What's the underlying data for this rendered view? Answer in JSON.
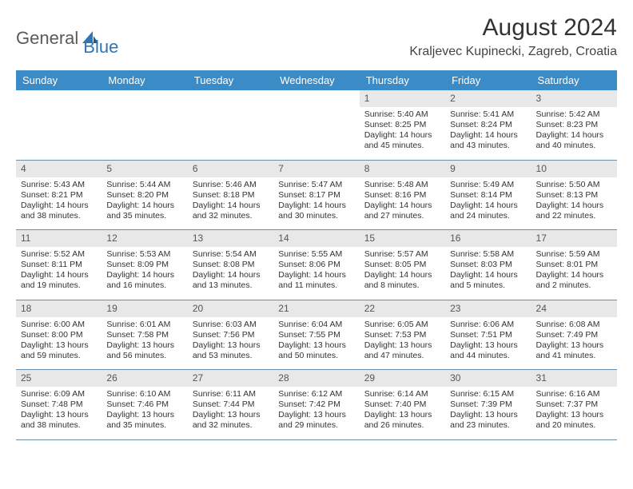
{
  "logo": {
    "text1": "General",
    "text2": "Blue"
  },
  "title": "August 2024",
  "location": "Kraljevec Kupinecki, Zagreb, Croatia",
  "colors": {
    "header_bg": "#3b8bc6",
    "header_text": "#ffffff",
    "daynum_bg": "#e8e8e8",
    "cell_border": "#6b8fa8",
    "logo_gray": "#5a5a5a",
    "logo_blue": "#2e75b6"
  },
  "weekdays": [
    "Sunday",
    "Monday",
    "Tuesday",
    "Wednesday",
    "Thursday",
    "Friday",
    "Saturday"
  ],
  "weeks": [
    [
      null,
      null,
      null,
      null,
      {
        "d": "1",
        "sunrise": "5:40 AM",
        "sunset": "8:25 PM",
        "dl": "14 hours and 45 minutes."
      },
      {
        "d": "2",
        "sunrise": "5:41 AM",
        "sunset": "8:24 PM",
        "dl": "14 hours and 43 minutes."
      },
      {
        "d": "3",
        "sunrise": "5:42 AM",
        "sunset": "8:23 PM",
        "dl": "14 hours and 40 minutes."
      }
    ],
    [
      {
        "d": "4",
        "sunrise": "5:43 AM",
        "sunset": "8:21 PM",
        "dl": "14 hours and 38 minutes."
      },
      {
        "d": "5",
        "sunrise": "5:44 AM",
        "sunset": "8:20 PM",
        "dl": "14 hours and 35 minutes."
      },
      {
        "d": "6",
        "sunrise": "5:46 AM",
        "sunset": "8:18 PM",
        "dl": "14 hours and 32 minutes."
      },
      {
        "d": "7",
        "sunrise": "5:47 AM",
        "sunset": "8:17 PM",
        "dl": "14 hours and 30 minutes."
      },
      {
        "d": "8",
        "sunrise": "5:48 AM",
        "sunset": "8:16 PM",
        "dl": "14 hours and 27 minutes."
      },
      {
        "d": "9",
        "sunrise": "5:49 AM",
        "sunset": "8:14 PM",
        "dl": "14 hours and 24 minutes."
      },
      {
        "d": "10",
        "sunrise": "5:50 AM",
        "sunset": "8:13 PM",
        "dl": "14 hours and 22 minutes."
      }
    ],
    [
      {
        "d": "11",
        "sunrise": "5:52 AM",
        "sunset": "8:11 PM",
        "dl": "14 hours and 19 minutes."
      },
      {
        "d": "12",
        "sunrise": "5:53 AM",
        "sunset": "8:09 PM",
        "dl": "14 hours and 16 minutes."
      },
      {
        "d": "13",
        "sunrise": "5:54 AM",
        "sunset": "8:08 PM",
        "dl": "14 hours and 13 minutes."
      },
      {
        "d": "14",
        "sunrise": "5:55 AM",
        "sunset": "8:06 PM",
        "dl": "14 hours and 11 minutes."
      },
      {
        "d": "15",
        "sunrise": "5:57 AM",
        "sunset": "8:05 PM",
        "dl": "14 hours and 8 minutes."
      },
      {
        "d": "16",
        "sunrise": "5:58 AM",
        "sunset": "8:03 PM",
        "dl": "14 hours and 5 minutes."
      },
      {
        "d": "17",
        "sunrise": "5:59 AM",
        "sunset": "8:01 PM",
        "dl": "14 hours and 2 minutes."
      }
    ],
    [
      {
        "d": "18",
        "sunrise": "6:00 AM",
        "sunset": "8:00 PM",
        "dl": "13 hours and 59 minutes."
      },
      {
        "d": "19",
        "sunrise": "6:01 AM",
        "sunset": "7:58 PM",
        "dl": "13 hours and 56 minutes."
      },
      {
        "d": "20",
        "sunrise": "6:03 AM",
        "sunset": "7:56 PM",
        "dl": "13 hours and 53 minutes."
      },
      {
        "d": "21",
        "sunrise": "6:04 AM",
        "sunset": "7:55 PM",
        "dl": "13 hours and 50 minutes."
      },
      {
        "d": "22",
        "sunrise": "6:05 AM",
        "sunset": "7:53 PM",
        "dl": "13 hours and 47 minutes."
      },
      {
        "d": "23",
        "sunrise": "6:06 AM",
        "sunset": "7:51 PM",
        "dl": "13 hours and 44 minutes."
      },
      {
        "d": "24",
        "sunrise": "6:08 AM",
        "sunset": "7:49 PM",
        "dl": "13 hours and 41 minutes."
      }
    ],
    [
      {
        "d": "25",
        "sunrise": "6:09 AM",
        "sunset": "7:48 PM",
        "dl": "13 hours and 38 minutes."
      },
      {
        "d": "26",
        "sunrise": "6:10 AM",
        "sunset": "7:46 PM",
        "dl": "13 hours and 35 minutes."
      },
      {
        "d": "27",
        "sunrise": "6:11 AM",
        "sunset": "7:44 PM",
        "dl": "13 hours and 32 minutes."
      },
      {
        "d": "28",
        "sunrise": "6:12 AM",
        "sunset": "7:42 PM",
        "dl": "13 hours and 29 minutes."
      },
      {
        "d": "29",
        "sunrise": "6:14 AM",
        "sunset": "7:40 PM",
        "dl": "13 hours and 26 minutes."
      },
      {
        "d": "30",
        "sunrise": "6:15 AM",
        "sunset": "7:39 PM",
        "dl": "13 hours and 23 minutes."
      },
      {
        "d": "31",
        "sunrise": "6:16 AM",
        "sunset": "7:37 PM",
        "dl": "13 hours and 20 minutes."
      }
    ]
  ]
}
